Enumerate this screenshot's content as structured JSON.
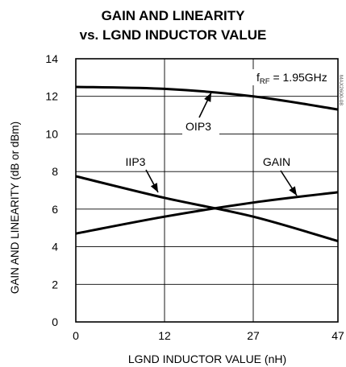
{
  "chart_data": {
    "type": "line",
    "title_lines": [
      "GAIN AND LINEARITY",
      "vs. LGND INDUCTOR VALUE"
    ],
    "xlabel": "LGND INDUCTOR VALUE (nH)",
    "ylabel": "GAIN AND LINEARITY (dB or dBm)",
    "x_ticks": [
      "0",
      "12",
      "27",
      "47"
    ],
    "y_ticks": [
      0,
      2,
      4,
      6,
      8,
      10,
      12,
      14
    ],
    "ylim": [
      0,
      14
    ],
    "grid": true,
    "condition_label": "1.95GHz",
    "condition_symbol": "f",
    "condition_subscript": "RF",
    "side_code": "MAX2600-08",
    "series": [
      {
        "name": "OIP3",
        "x": [
          0,
          12,
          27,
          47
        ],
        "values": [
          12.5,
          12.4,
          12.0,
          11.3
        ]
      },
      {
        "name": "IIP3",
        "x": [
          0,
          12,
          27,
          47
        ],
        "values": [
          7.75,
          6.6,
          5.6,
          4.3
        ]
      },
      {
        "name": "GAIN",
        "x": [
          0,
          12,
          27,
          47
        ],
        "values": [
          4.7,
          5.6,
          6.35,
          6.9
        ]
      }
    ]
  }
}
